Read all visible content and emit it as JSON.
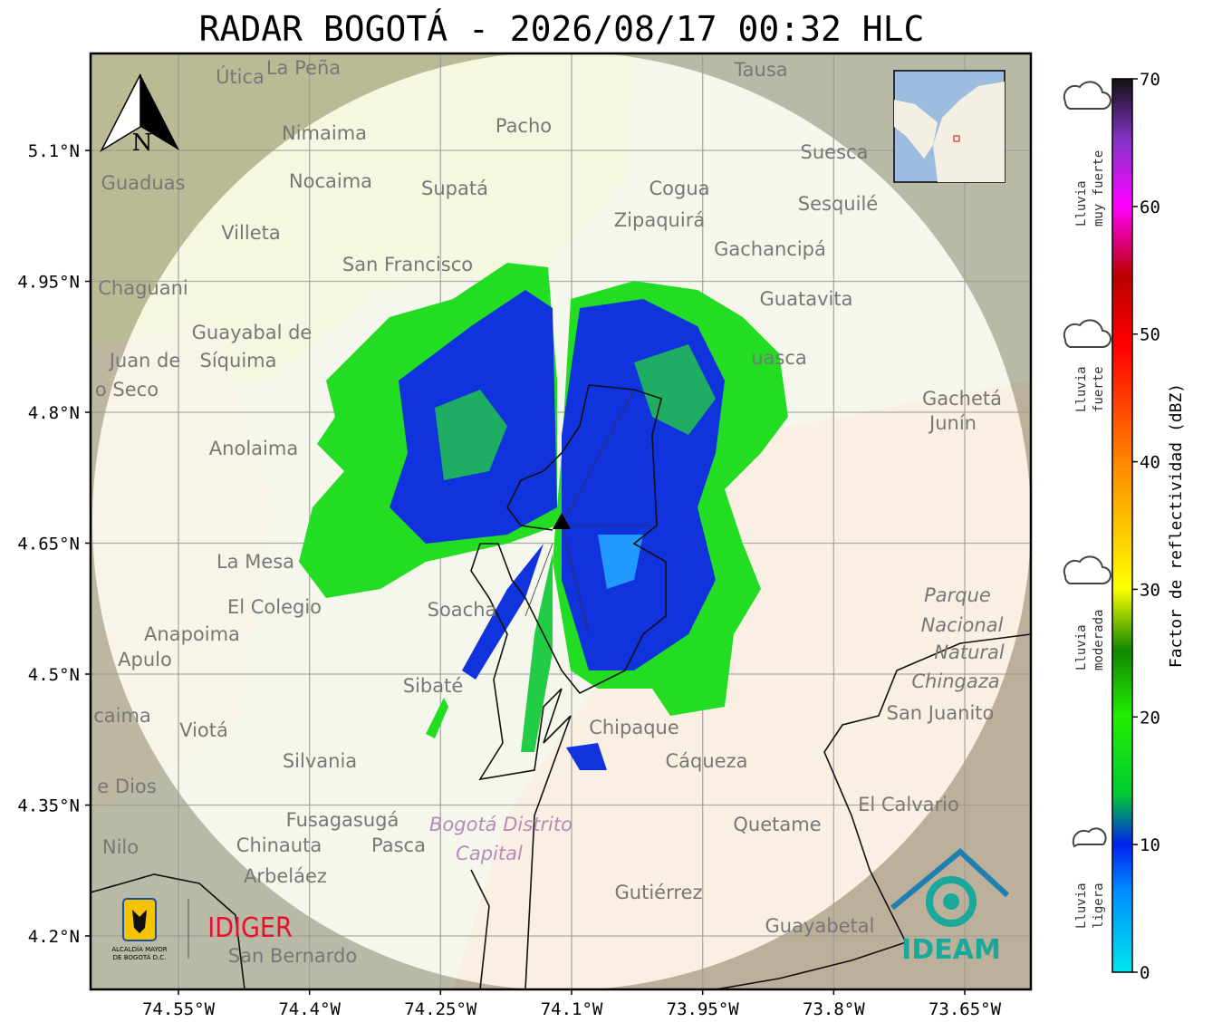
{
  "title": "RADAR BOGOTÁ - 2026/08/17 00:32 HLC",
  "lat_ticks": [
    {
      "value": 5.1,
      "label": "5.1°N"
    },
    {
      "value": 4.95,
      "label": "4.95°N"
    },
    {
      "value": 4.8,
      "label": "4.8°N"
    },
    {
      "value": 4.65,
      "label": "4.65°N"
    },
    {
      "value": 4.5,
      "label": "4.5°N"
    },
    {
      "value": 4.35,
      "label": "4.35°N"
    },
    {
      "value": 4.2,
      "label": "4.2°N"
    }
  ],
  "lon_ticks": [
    {
      "value": -74.55,
      "label": "74.55°W"
    },
    {
      "value": -74.4,
      "label": "74.4°W"
    },
    {
      "value": -74.25,
      "label": "74.25°W"
    },
    {
      "value": -74.1,
      "label": "74.1°W"
    },
    {
      "value": -73.95,
      "label": "73.95°W"
    },
    {
      "value": -73.8,
      "label": "73.8°W"
    },
    {
      "value": -73.65,
      "label": "73.65°W"
    }
  ],
  "colorbar": {
    "label": "Factor de reflectividad (dBZ)",
    "lim": [
      0,
      70
    ],
    "ticks": [
      0,
      10,
      20,
      30,
      40,
      50,
      60,
      70
    ]
  },
  "rain_levels": [
    [
      "Lluvia",
      "muy fuerte"
    ],
    [
      "Lluvia",
      "fuerte"
    ],
    [
      "Lluvia",
      "moderada"
    ],
    [
      "Lluvia",
      "ligera"
    ]
  ],
  "north": "N",
  "logos": {
    "alcaldia": [
      "ALCALDÍA MAYOR",
      "DE BOGOTÁ D.C."
    ],
    "idiger": "IDIGER",
    "ideam": "IDEAM"
  },
  "places": [
    "Útica",
    "La Peña",
    "Tausa",
    "Nimaima",
    "Pacho",
    "Guaduas",
    "Nocaima",
    "Supatá",
    "Cogua",
    "Suesca",
    "Zipaquirá",
    "Sesquilé",
    "Villeta",
    "Gachancipá",
    "San Francisco",
    "Chaguani",
    "Guatavita",
    "Guayabal de",
    "Síquima",
    "Juan de",
    "o Seco",
    "uasca",
    "Gachetá",
    "Junín",
    "Anolaima",
    "La Mesa",
    "Soacha",
    "Parque",
    "Nacional",
    "Natural",
    "Chingaza",
    "El Colegio",
    "Anapoima",
    "Apulo",
    "Sibaté",
    "San Juanito",
    "caima",
    "Viotá",
    "Chipaque",
    "Cáqueza",
    "Silvania",
    "e Dios",
    "El Calvario",
    "Fusagasugá",
    "Bogotá Distrito",
    "Capital",
    "Quetame",
    "Nilo",
    "Chinauta",
    "Pasca",
    "Arbeláez",
    "Gutiérrez",
    "Guayabetal",
    "San Bernardo"
  ]
}
